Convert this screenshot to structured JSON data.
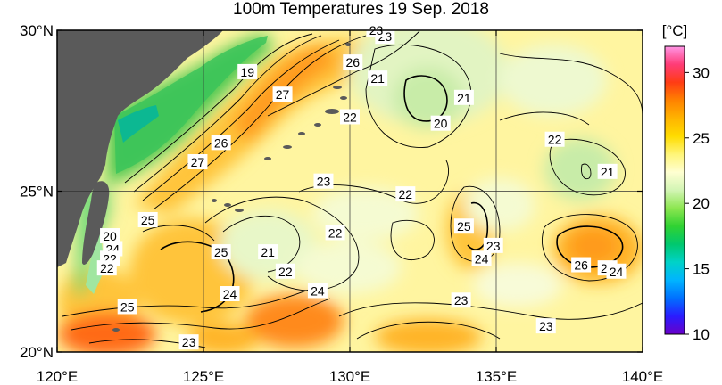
{
  "title": "100m Temperatures  19 Sep. 2018",
  "map": {
    "lon_range": [
      120,
      140
    ],
    "lat_range": [
      20,
      30
    ],
    "lon_ticks": [
      {
        "value": 120,
        "label": "120°E"
      },
      {
        "value": 125,
        "label": "125°E"
      },
      {
        "value": 130,
        "label": "130°E"
      },
      {
        "value": 135,
        "label": "135°E"
      },
      {
        "value": 140,
        "label": "140°E"
      }
    ],
    "lat_ticks": [
      {
        "value": 20,
        "label": "20°N"
      },
      {
        "value": 25,
        "label": "25°N"
      },
      {
        "value": 30,
        "label": "30°N"
      }
    ],
    "grid": true,
    "land_color": "#5a5a5a"
  },
  "colorbar": {
    "unit": "[°C]",
    "min": 10,
    "max": 32,
    "tick_labels": [
      {
        "value": 10,
        "label": "10"
      },
      {
        "value": 15,
        "label": "15"
      },
      {
        "value": 20,
        "label": "20"
      },
      {
        "value": 25,
        "label": "25"
      },
      {
        "value": 30,
        "label": "30"
      }
    ],
    "colors": [
      "#6a00c8",
      "#2a1cff",
      "#0070ff",
      "#00b4ff",
      "#00d2c8",
      "#00c86e",
      "#30d232",
      "#8ce650",
      "#d2f5b4",
      "#ffffd2",
      "#fff578",
      "#ffdc00",
      "#ffb400",
      "#ff8200",
      "#ff3c14",
      "#ff3c78",
      "#ff96e6"
    ]
  },
  "contour_labels": [
    {
      "text": "23",
      "lon": 131.2,
      "lat": 29.8
    },
    {
      "text": "23",
      "lon": 130.9,
      "lat": 30.0
    },
    {
      "text": "26",
      "lon": 130.1,
      "lat": 29.0
    },
    {
      "text": "21",
      "lon": 130.95,
      "lat": 28.5
    },
    {
      "text": "19",
      "lon": 126.5,
      "lat": 28.7
    },
    {
      "text": "27",
      "lon": 127.7,
      "lat": 28.0
    },
    {
      "text": "22",
      "lon": 130.0,
      "lat": 27.3
    },
    {
      "text": "21",
      "lon": 133.9,
      "lat": 27.9
    },
    {
      "text": "20",
      "lon": 133.1,
      "lat": 27.1
    },
    {
      "text": "22",
      "lon": 137.0,
      "lat": 26.6
    },
    {
      "text": "26",
      "lon": 125.6,
      "lat": 26.5
    },
    {
      "text": "27",
      "lon": 124.8,
      "lat": 25.9
    },
    {
      "text": "21",
      "lon": 138.8,
      "lat": 25.6
    },
    {
      "text": "23",
      "lon": 129.1,
      "lat": 25.3
    },
    {
      "text": "22",
      "lon": 131.9,
      "lat": 24.9
    },
    {
      "text": "25",
      "lon": 123.1,
      "lat": 24.1
    },
    {
      "text": "22",
      "lon": 129.5,
      "lat": 23.7
    },
    {
      "text": "25",
      "lon": 133.9,
      "lat": 23.9
    },
    {
      "text": "23",
      "lon": 134.9,
      "lat": 23.3
    },
    {
      "text": "24",
      "lon": 134.5,
      "lat": 22.9
    },
    {
      "text": "25",
      "lon": 125.6,
      "lat": 23.1
    },
    {
      "text": "21",
      "lon": 127.2,
      "lat": 23.1
    },
    {
      "text": "24",
      "lon": 121.9,
      "lat": 23.2
    },
    {
      "text": "22",
      "lon": 121.8,
      "lat": 22.9
    },
    {
      "text": "22",
      "lon": 121.7,
      "lat": 22.6
    },
    {
      "text": "20",
      "lon": 121.8,
      "lat": 23.6
    },
    {
      "text": "22",
      "lon": 127.8,
      "lat": 22.5
    },
    {
      "text": "26",
      "lon": 137.9,
      "lat": 22.7
    },
    {
      "text": "25",
      "lon": 138.8,
      "lat": 22.6
    },
    {
      "text": "24",
      "lon": 139.1,
      "lat": 22.5
    },
    {
      "text": "24",
      "lon": 128.9,
      "lat": 21.9
    },
    {
      "text": "24",
      "lon": 125.9,
      "lat": 21.8
    },
    {
      "text": "25",
      "lon": 122.4,
      "lat": 21.4
    },
    {
      "text": "23",
      "lon": 133.8,
      "lat": 21.6
    },
    {
      "text": "23",
      "lon": 136.7,
      "lat": 20.8
    },
    {
      "text": "23",
      "lon": 124.5,
      "lat": 20.3
    }
  ]
}
